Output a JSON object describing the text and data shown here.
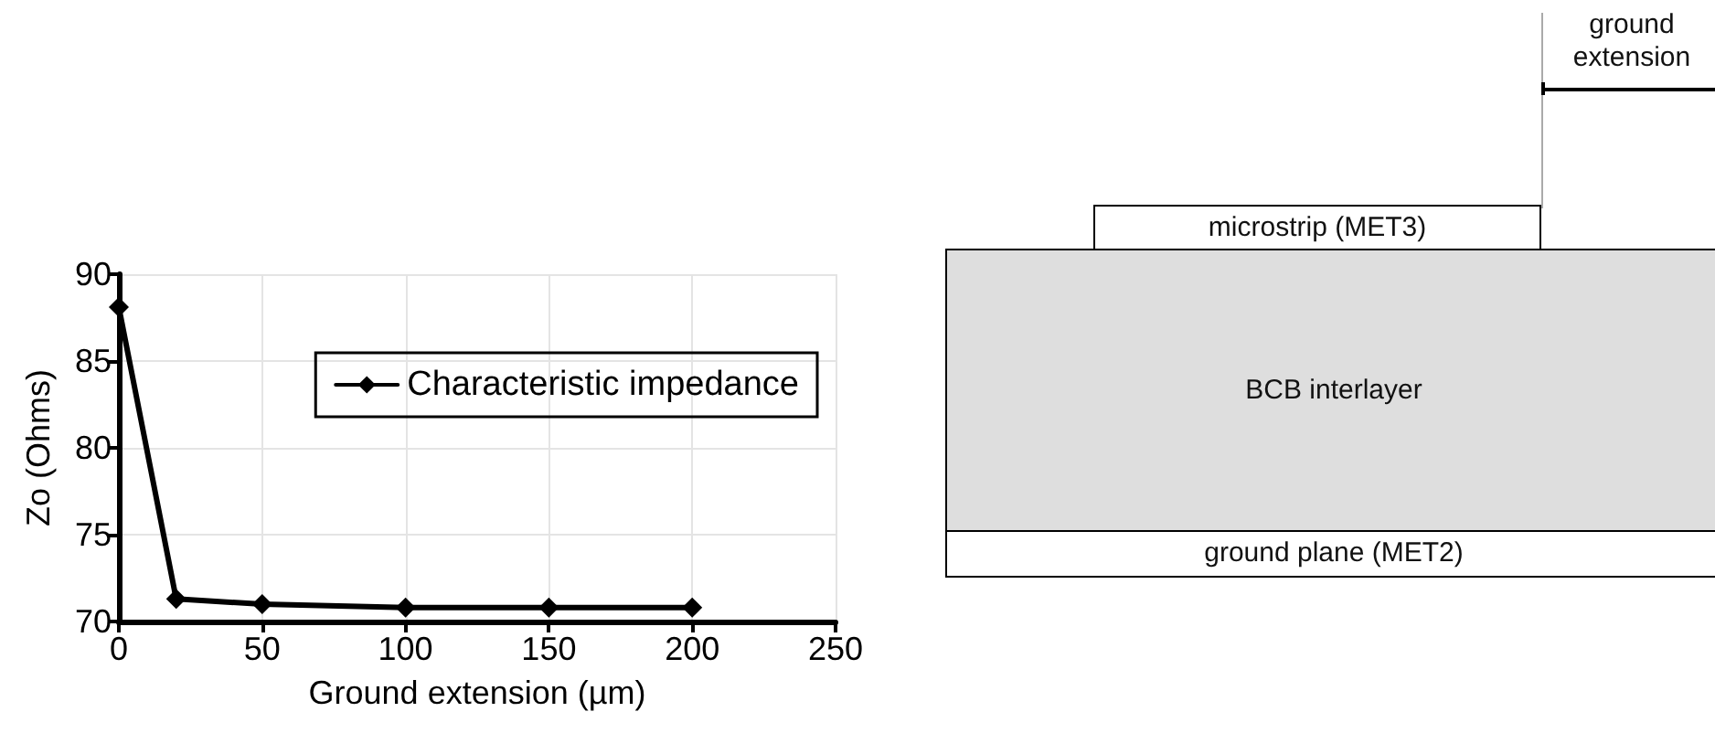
{
  "chart_data": {
    "type": "line",
    "xlabel": "Ground extension (µm)",
    "ylabel": "Zo (Ohms)",
    "x": [
      0,
      20,
      50,
      100,
      150,
      200
    ],
    "series": [
      {
        "name": "Characteristic impedance",
        "color": "#000000",
        "values": [
          88.1,
          71.3,
          71.0,
          70.8,
          70.8,
          70.8
        ]
      }
    ],
    "xlim": [
      0,
      250
    ],
    "xticks": [
      0,
      50,
      100,
      150,
      200,
      250
    ],
    "ylim": [
      70,
      90
    ],
    "yticks": [
      70,
      75,
      80,
      85,
      90
    ],
    "grid": true,
    "legend": "top right",
    "marker": "diamond",
    "line_style": "solid",
    "annotations": [
      "ground extension",
      "microstrip (MET3)",
      "BCB interlayer",
      "ground plane (MET2)"
    ]
  }
}
